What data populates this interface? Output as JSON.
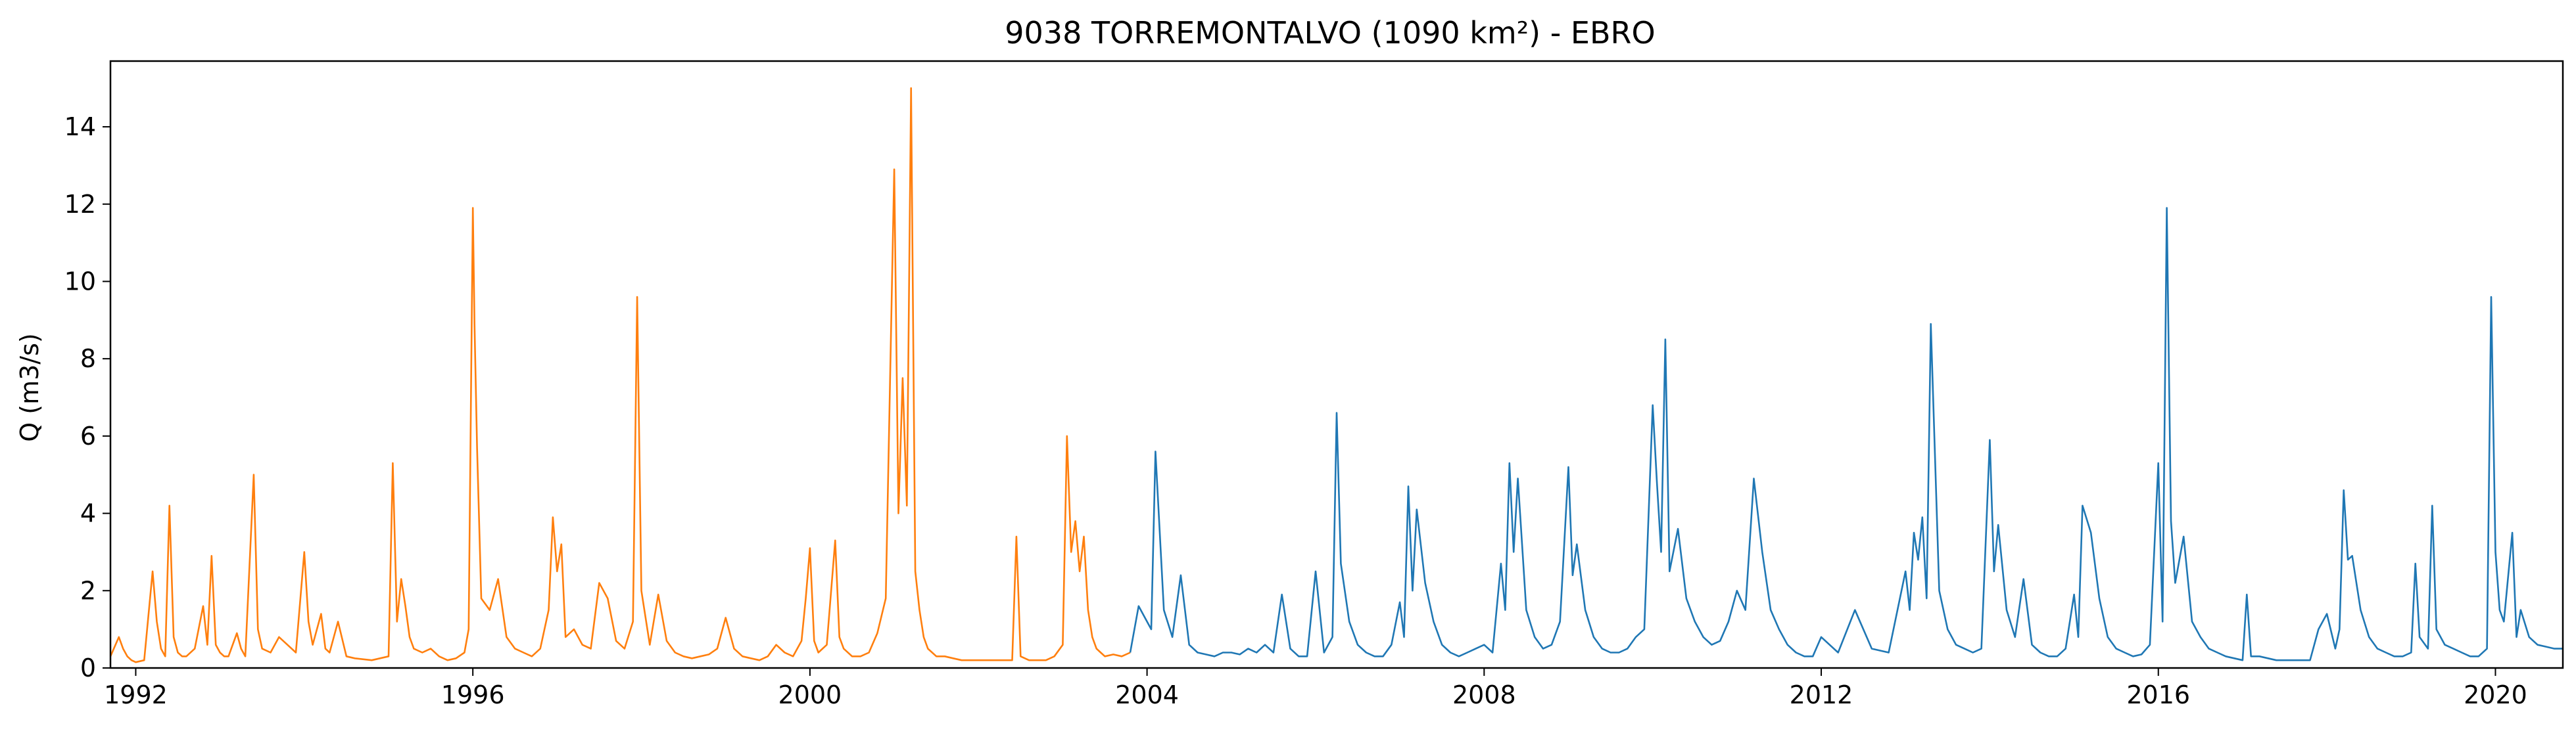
{
  "chart_data": {
    "type": "line",
    "title": "9038 TORREMONTALVO (1090 km²) - EBRO",
    "xlabel": "",
    "ylabel": "Q (m3/s)",
    "xlim": [
      1991.7,
      2020.8
    ],
    "ylim": [
      0,
      15.7
    ],
    "x_ticks": [
      "1992",
      "1996",
      "2000",
      "2004",
      "2008",
      "2012",
      "2016",
      "2020"
    ],
    "y_ticks": [
      "0",
      "2",
      "4",
      "6",
      "8",
      "10",
      "12",
      "14"
    ],
    "grid": false,
    "series": [
      {
        "color": "#ff7f0e",
        "x": [
          1991.7,
          1991.8,
          1991.85,
          1991.9,
          1991.95,
          1992.0,
          1992.1,
          1992.2,
          1992.25,
          1992.3,
          1992.35,
          1992.4,
          1992.45,
          1992.5,
          1992.55,
          1992.6,
          1992.7,
          1992.8,
          1992.85,
          1992.9,
          1992.95,
          1993.0,
          1993.05,
          1993.1,
          1993.2,
          1993.25,
          1993.3,
          1993.4,
          1993.45,
          1993.5,
          1993.6,
          1993.7,
          1993.8,
          1993.9,
          1994.0,
          1994.05,
          1994.1,
          1994.2,
          1994.25,
          1994.3,
          1994.4,
          1994.5,
          1994.6,
          1994.8,
          1995.0,
          1995.05,
          1995.1,
          1995.15,
          1995.2,
          1995.25,
          1995.3,
          1995.4,
          1995.5,
          1995.6,
          1995.7,
          1995.8,
          1995.9,
          1995.95,
          1996.0,
          1996.02,
          1996.05,
          1996.1,
          1996.2,
          1996.3,
          1996.4,
          1996.5,
          1996.6,
          1996.7,
          1996.8,
          1996.9,
          1996.95,
          1997.0,
          1997.05,
          1997.1,
          1997.2,
          1997.3,
          1997.4,
          1997.5,
          1997.6,
          1997.7,
          1997.8,
          1997.9,
          1997.95,
          1998.0,
          1998.1,
          1998.2,
          1998.3,
          1998.4,
          1998.5,
          1998.6,
          1998.7,
          1998.8,
          1998.9,
          1999.0,
          1999.1,
          1999.2,
          1999.3,
          1999.4,
          1999.5,
          1999.6,
          1999.7,
          1999.8,
          1999.9,
          1999.95,
          2000.0,
          2000.05,
          2000.1,
          2000.2,
          2000.3,
          2000.35,
          2000.4,
          2000.5,
          2000.6,
          2000.7,
          2000.8,
          2000.9,
          2001.0,
          2001.05,
          2001.1,
          2001.15,
          2001.2,
          2001.25,
          2001.3,
          2001.35,
          2001.4,
          2001.5,
          2001.6,
          2001.7,
          2001.8,
          2001.9,
          2002.0,
          2002.2,
          2002.4,
          2002.45,
          2002.5,
          2002.6,
          2002.8,
          2002.9,
          2003.0,
          2003.05,
          2003.1,
          2003.15,
          2003.2,
          2003.25,
          2003.3,
          2003.35,
          2003.4,
          2003.45,
          2003.5,
          2003.6,
          2003.7,
          2003.8
        ],
        "values": [
          0.3,
          0.8,
          0.5,
          0.3,
          0.2,
          0.15,
          0.2,
          2.5,
          1.2,
          0.5,
          0.3,
          4.2,
          0.8,
          0.4,
          0.3,
          0.3,
          0.5,
          1.6,
          0.6,
          2.9,
          0.6,
          0.4,
          0.3,
          0.3,
          0.9,
          0.5,
          0.3,
          5.0,
          1.0,
          0.5,
          0.4,
          0.8,
          0.6,
          0.4,
          3.0,
          1.2,
          0.6,
          1.4,
          0.5,
          0.4,
          1.2,
          0.3,
          0.25,
          0.2,
          0.3,
          5.3,
          1.2,
          2.3,
          1.6,
          0.8,
          0.5,
          0.4,
          0.5,
          0.3,
          0.2,
          0.25,
          0.4,
          1.0,
          11.9,
          8.9,
          5.7,
          1.8,
          1.5,
          2.3,
          0.8,
          0.5,
          0.4,
          0.3,
          0.5,
          1.5,
          3.9,
          2.5,
          3.2,
          0.8,
          1.0,
          0.6,
          0.5,
          2.2,
          1.8,
          0.7,
          0.5,
          1.2,
          9.6,
          2.0,
          0.6,
          1.9,
          0.7,
          0.4,
          0.3,
          0.25,
          0.3,
          0.35,
          0.5,
          1.3,
          0.5,
          0.3,
          0.25,
          0.2,
          0.3,
          0.6,
          0.4,
          0.3,
          0.7,
          1.8,
          3.1,
          0.7,
          0.4,
          0.6,
          3.3,
          0.8,
          0.5,
          0.3,
          0.3,
          0.4,
          0.9,
          1.8,
          12.9,
          4.0,
          7.5,
          4.2,
          15.0,
          2.5,
          1.5,
          0.8,
          0.5,
          0.3,
          0.3,
          0.25,
          0.2,
          0.2,
          0.2,
          0.2,
          0.2,
          3.4,
          0.3,
          0.2,
          0.2,
          0.3,
          0.6,
          6.0,
          3.0,
          3.8,
          2.5,
          3.4,
          1.5,
          0.8,
          0.5,
          0.4,
          0.3,
          0.35,
          0.3,
          0.4
        ]
      },
      {
        "color": "#1f77b4",
        "x": [
          2003.8,
          2003.9,
          2004.0,
          2004.05,
          2004.1,
          2004.2,
          2004.3,
          2004.4,
          2004.5,
          2004.6,
          2004.7,
          2004.8,
          2004.9,
          2005.0,
          2005.1,
          2005.2,
          2005.3,
          2005.4,
          2005.5,
          2005.6,
          2005.7,
          2005.8,
          2005.9,
          2006.0,
          2006.1,
          2006.2,
          2006.25,
          2006.3,
          2006.4,
          2006.5,
          2006.6,
          2006.7,
          2006.8,
          2006.9,
          2007.0,
          2007.05,
          2007.1,
          2007.15,
          2007.2,
          2007.3,
          2007.4,
          2007.5,
          2007.6,
          2007.7,
          2007.8,
          2007.9,
          2008.0,
          2008.1,
          2008.2,
          2008.25,
          2008.3,
          2008.35,
          2008.4,
          2008.5,
          2008.6,
          2008.7,
          2008.8,
          2008.9,
          2009.0,
          2009.05,
          2009.1,
          2009.2,
          2009.3,
          2009.4,
          2009.5,
          2009.6,
          2009.7,
          2009.8,
          2009.9,
          2010.0,
          2010.05,
          2010.1,
          2010.15,
          2010.2,
          2010.3,
          2010.4,
          2010.5,
          2010.6,
          2010.7,
          2010.8,
          2010.9,
          2011.0,
          2011.1,
          2011.2,
          2011.3,
          2011.4,
          2011.5,
          2011.6,
          2011.7,
          2011.8,
          2011.9,
          2012.0,
          2012.2,
          2012.4,
          2012.6,
          2012.8,
          2013.0,
          2013.05,
          2013.1,
          2013.15,
          2013.2,
          2013.25,
          2013.3,
          2013.4,
          2013.5,
          2013.6,
          2013.7,
          2013.8,
          2013.9,
          2014.0,
          2014.05,
          2014.1,
          2014.2,
          2014.3,
          2014.4,
          2014.5,
          2014.6,
          2014.7,
          2014.8,
          2014.9,
          2015.0,
          2015.05,
          2015.1,
          2015.2,
          2015.3,
          2015.4,
          2015.5,
          2015.6,
          2015.7,
          2015.8,
          2015.9,
          2016.0,
          2016.05,
          2016.1,
          2016.15,
          2016.2,
          2016.3,
          2016.4,
          2016.5,
          2016.6,
          2016.7,
          2016.8,
          2017.0,
          2017.05,
          2017.1,
          2017.2,
          2017.4,
          2017.6,
          2017.8,
          2017.9,
          2018.0,
          2018.1,
          2018.15,
          2018.2,
          2018.25,
          2018.3,
          2018.4,
          2018.5,
          2018.6,
          2018.7,
          2018.8,
          2018.9,
          2019.0,
          2019.05,
          2019.1,
          2019.2,
          2019.25,
          2019.3,
          2019.4,
          2019.5,
          2019.6,
          2019.7,
          2019.8,
          2019.9,
          2019.95,
          2020.0,
          2020.05,
          2020.1,
          2020.2,
          2020.25,
          2020.3,
          2020.4,
          2020.5,
          2020.6,
          2020.7,
          2020.8
        ],
        "values": [
          0.4,
          1.6,
          1.2,
          1.0,
          5.6,
          1.5,
          0.8,
          2.4,
          0.6,
          0.4,
          0.35,
          0.3,
          0.4,
          0.4,
          0.35,
          0.5,
          0.4,
          0.6,
          0.4,
          1.9,
          0.5,
          0.3,
          0.3,
          2.5,
          0.4,
          0.8,
          6.6,
          2.7,
          1.2,
          0.6,
          0.4,
          0.3,
          0.3,
          0.6,
          1.7,
          0.8,
          4.7,
          2.0,
          4.1,
          2.2,
          1.2,
          0.6,
          0.4,
          0.3,
          0.4,
          0.5,
          0.6,
          0.4,
          2.7,
          1.5,
          5.3,
          3.0,
          4.9,
          1.5,
          0.8,
          0.5,
          0.6,
          1.2,
          5.2,
          2.4,
          3.2,
          1.5,
          0.8,
          0.5,
          0.4,
          0.4,
          0.5,
          0.8,
          1.0,
          6.8,
          4.8,
          3.0,
          8.5,
          2.5,
          3.6,
          1.8,
          1.2,
          0.8,
          0.6,
          0.7,
          1.2,
          2.0,
          1.5,
          4.9,
          3.0,
          1.5,
          1.0,
          0.6,
          0.4,
          0.3,
          0.3,
          0.8,
          0.4,
          1.5,
          0.5,
          0.4,
          2.5,
          1.5,
          3.5,
          2.8,
          3.9,
          1.8,
          8.9,
          2.0,
          1.0,
          0.6,
          0.5,
          0.4,
          0.5,
          5.9,
          2.5,
          3.7,
          1.5,
          0.8,
          2.3,
          0.6,
          0.4,
          0.3,
          0.3,
          0.5,
          1.9,
          0.8,
          4.2,
          3.5,
          1.8,
          0.8,
          0.5,
          0.4,
          0.3,
          0.35,
          0.6,
          5.3,
          1.2,
          11.9,
          3.8,
          2.2,
          3.4,
          1.2,
          0.8,
          0.5,
          0.4,
          0.3,
          0.2,
          1.9,
          0.3,
          0.3,
          0.2,
          0.2,
          0.2,
          1.0,
          1.4,
          0.5,
          1.0,
          4.6,
          2.8,
          2.9,
          1.5,
          0.8,
          0.5,
          0.4,
          0.3,
          0.3,
          0.4,
          2.7,
          0.8,
          0.5,
          4.2,
          1.0,
          0.6,
          0.5,
          0.4,
          0.3,
          0.3,
          0.5,
          9.6,
          3.0,
          1.5,
          1.2,
          3.5,
          0.8,
          1.5,
          0.8,
          0.6,
          0.55,
          0.5,
          0.5
        ]
      }
    ]
  }
}
